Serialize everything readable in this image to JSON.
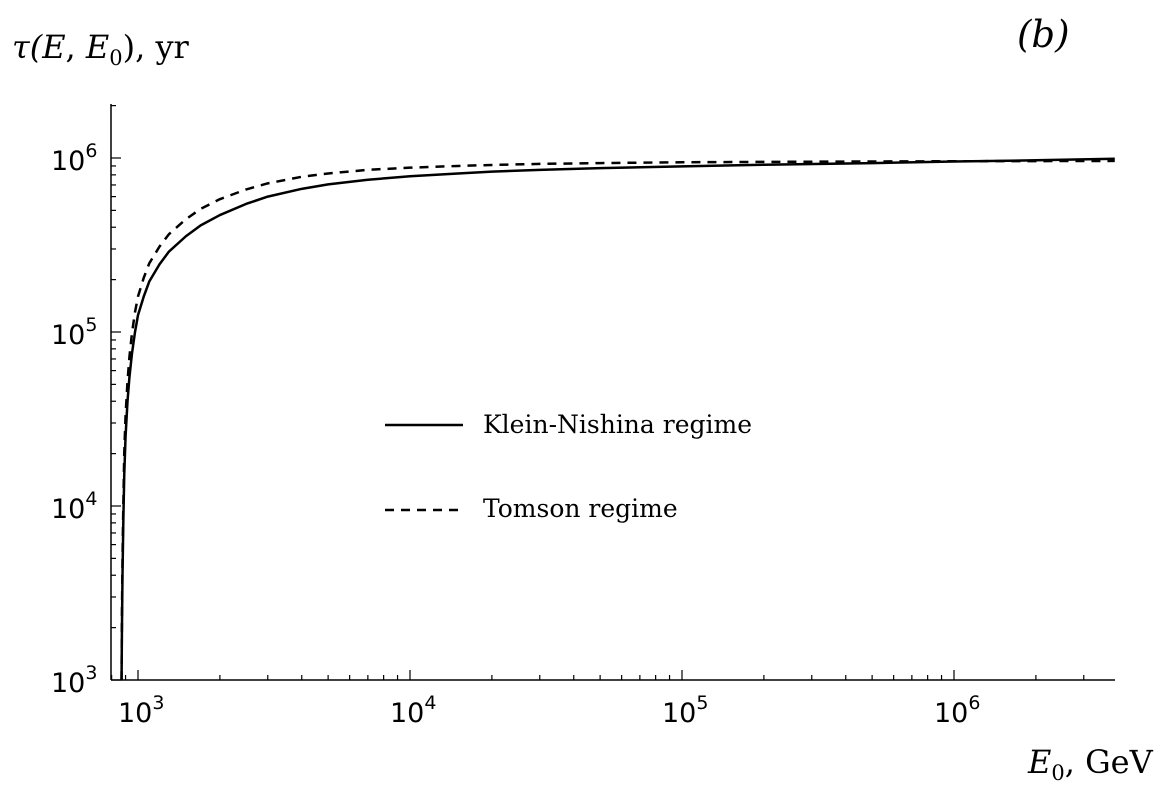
{
  "chart_data": {
    "type": "line",
    "panel_label": "(b)",
    "ylabel": {
      "main": "τ(",
      "arg1": "E",
      "sep": ", ",
      "arg2": "E",
      "arg2_sub": "0",
      "close": "), yr"
    },
    "xlabel": {
      "main": "E",
      "sub": "0",
      "rest": ", GeV"
    },
    "x_scale": "log",
    "y_scale": "log",
    "xlim": [
      780,
      3900000
    ],
    "ylim": [
      1000,
      2000000
    ],
    "x_ticks": [
      {
        "value": 1000,
        "base": "10",
        "exp": "3"
      },
      {
        "value": 10000,
        "base": "10",
        "exp": "4"
      },
      {
        "value": 100000,
        "base": "10",
        "exp": "5"
      },
      {
        "value": 1000000,
        "base": "10",
        "exp": "6"
      }
    ],
    "y_ticks": [
      {
        "value": 1000,
        "base": "10",
        "exp": "3"
      },
      {
        "value": 10000,
        "base": "10",
        "exp": "4"
      },
      {
        "value": 100000,
        "base": "10",
        "exp": "5"
      },
      {
        "value": 1000000,
        "base": "10",
        "exp": "6"
      }
    ],
    "grid": false,
    "legend_position": "center-left",
    "series": [
      {
        "name": "Klein-Nishina regime",
        "style": "solid",
        "color": "#000000",
        "x": [
          870,
          873,
          877,
          883,
          890,
          900,
          915,
          930,
          950,
          975,
          1000,
          1050,
          1100,
          1200,
          1300,
          1500,
          1700,
          2000,
          2500,
          3000,
          4000,
          5000,
          7000,
          10000,
          15000,
          20000,
          30000,
          50000,
          100000,
          200000,
          500000,
          1000000,
          2000000,
          3900000
        ],
        "y": [
          1000,
          2000,
          4000,
          8000,
          15000,
          25000,
          40000,
          55000,
          75000,
          100000,
          125000,
          160000,
          195000,
          245000,
          290000,
          355000,
          410000,
          470000,
          545000,
          600000,
          665000,
          705000,
          750000,
          785000,
          815000,
          835000,
          855000,
          875000,
          895000,
          915000,
          935000,
          955000,
          970000,
          990000
        ]
      },
      {
        "name": "Tomson regime",
        "style": "dashed",
        "color": "#000000",
        "x": [
          870,
          873,
          877,
          883,
          890,
          900,
          915,
          930,
          950,
          975,
          1000,
          1050,
          1100,
          1200,
          1300,
          1500,
          1700,
          2000,
          2500,
          3000,
          4000,
          5000,
          7000,
          10000,
          15000,
          20000,
          30000,
          50000,
          100000,
          200000,
          500000,
          1000000,
          2000000,
          3900000
        ],
        "y": [
          1000,
          2500,
          5000,
          10000,
          20000,
          33000,
          52000,
          72000,
          98000,
          130000,
          160000,
          205000,
          248000,
          310000,
          365000,
          445000,
          510000,
          580000,
          660000,
          715000,
          780000,
          815000,
          855000,
          880000,
          900000,
          912000,
          925000,
          935000,
          945000,
          950000,
          955000,
          958000,
          960000,
          962000
        ]
      }
    ]
  }
}
